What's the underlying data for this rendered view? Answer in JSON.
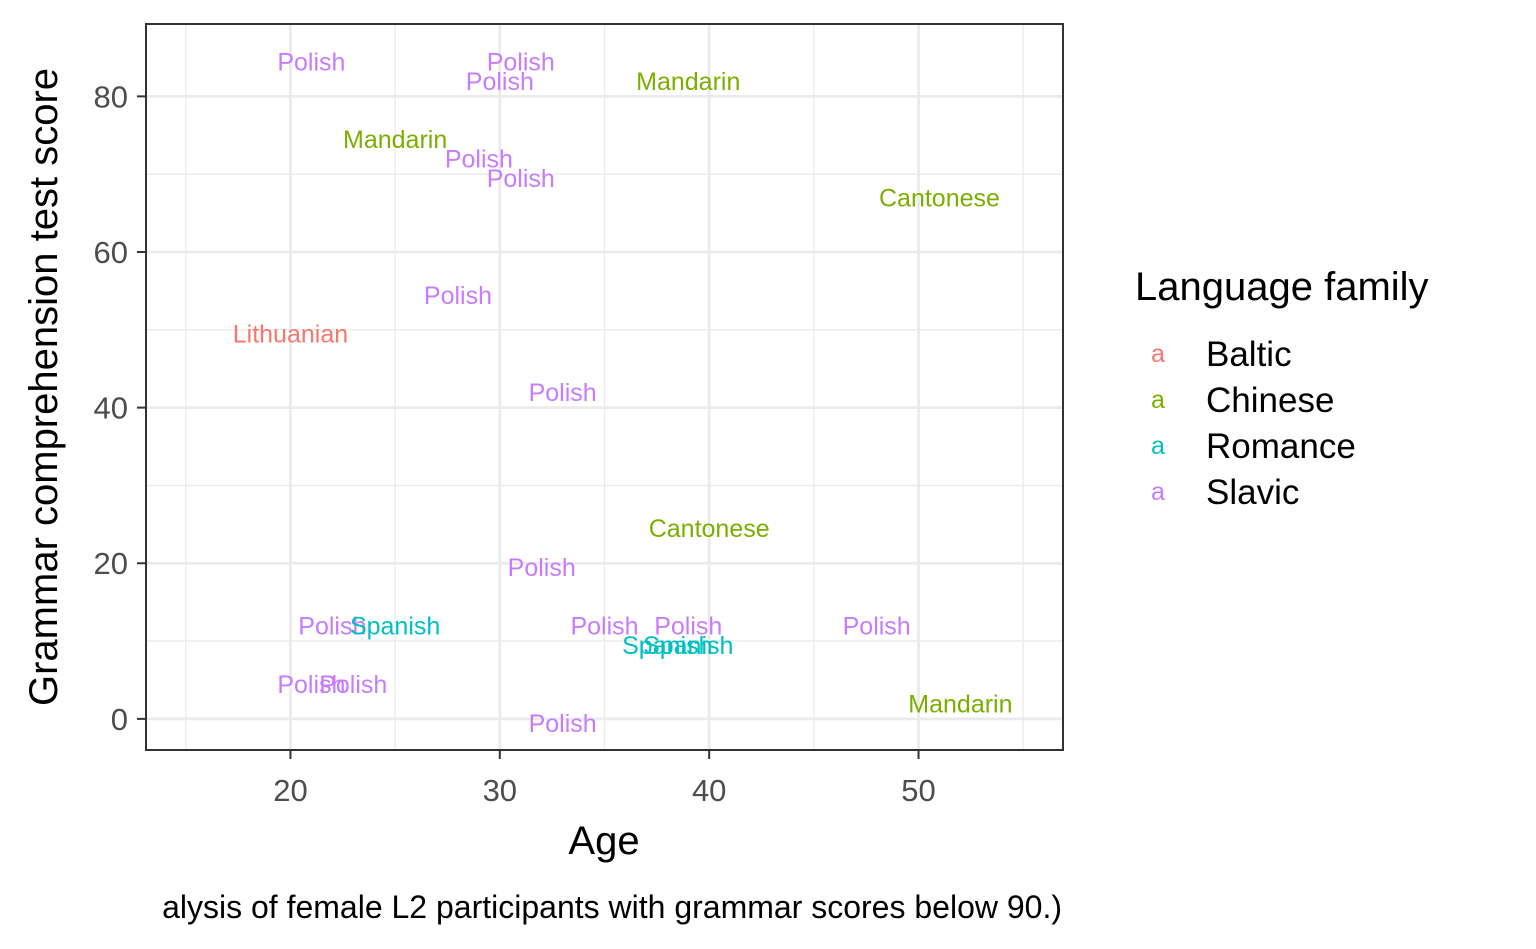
{
  "chart_data": {
    "type": "scatter",
    "xlabel": "Age",
    "ylabel": "Grammar comprehension test score",
    "caption": "alysis of female L2 participants with grammar scores below 90.)",
    "xlim": [
      13.1,
      56.9
    ],
    "ylim": [
      -4,
      89.3
    ],
    "x_ticks": [
      20,
      30,
      40,
      50
    ],
    "y_ticks": [
      0,
      20,
      40,
      60,
      80
    ],
    "grid": true,
    "legend": {
      "title": "Language family",
      "placement": "right",
      "key_glyph": "a",
      "entries": [
        {
          "name": "Baltic",
          "color": "#f8766d"
        },
        {
          "name": "Chinese",
          "color": "#7cae00"
        },
        {
          "name": "Romance",
          "color": "#00bfc4"
        },
        {
          "name": "Slavic",
          "color": "#c77cff"
        }
      ]
    },
    "points": [
      {
        "label": "Polish",
        "family": "Slavic",
        "x": 21,
        "y": 84.5
      },
      {
        "label": "Polish",
        "family": "Slavic",
        "x": 31,
        "y": 84.5
      },
      {
        "label": "Polish",
        "family": "Slavic",
        "x": 30,
        "y": 82
      },
      {
        "label": "Mandarin",
        "family": "Chinese",
        "x": 39,
        "y": 82
      },
      {
        "label": "Mandarin",
        "family": "Chinese",
        "x": 25,
        "y": 74.5
      },
      {
        "label": "Polish",
        "family": "Slavic",
        "x": 29,
        "y": 72
      },
      {
        "label": "Polish",
        "family": "Slavic",
        "x": 31,
        "y": 69.5
      },
      {
        "label": "Cantonese",
        "family": "Chinese",
        "x": 51,
        "y": 67
      },
      {
        "label": "Polish",
        "family": "Slavic",
        "x": 28,
        "y": 54.5
      },
      {
        "label": "Lithuanian",
        "family": "Baltic",
        "x": 20,
        "y": 49.5
      },
      {
        "label": "Polish",
        "family": "Slavic",
        "x": 33,
        "y": 42
      },
      {
        "label": "Cantonese",
        "family": "Chinese",
        "x": 40,
        "y": 24.5
      },
      {
        "label": "Polish",
        "family": "Slavic",
        "x": 32,
        "y": 19.5
      },
      {
        "label": "Polish",
        "family": "Slavic",
        "x": 22,
        "y": 12
      },
      {
        "label": "Spanish",
        "family": "Romance",
        "x": 25,
        "y": 12
      },
      {
        "label": "Polish",
        "family": "Slavic",
        "x": 35,
        "y": 12
      },
      {
        "label": "Polish",
        "family": "Slavic",
        "x": 39,
        "y": 12
      },
      {
        "label": "Polish",
        "family": "Slavic",
        "x": 48,
        "y": 12
      },
      {
        "label": "Spanish",
        "family": "Romance",
        "x": 38,
        "y": 9.5
      },
      {
        "label": "Spanish",
        "family": "Romance",
        "x": 39,
        "y": 9.5
      },
      {
        "label": "Polish",
        "family": "Slavic",
        "x": 21,
        "y": 4.5
      },
      {
        "label": "Polish",
        "family": "Slavic",
        "x": 23,
        "y": 4.5
      },
      {
        "label": "Mandarin",
        "family": "Chinese",
        "x": 52,
        "y": 2
      },
      {
        "label": "Polish",
        "family": "Slavic",
        "x": 33,
        "y": -0.5
      }
    ]
  }
}
